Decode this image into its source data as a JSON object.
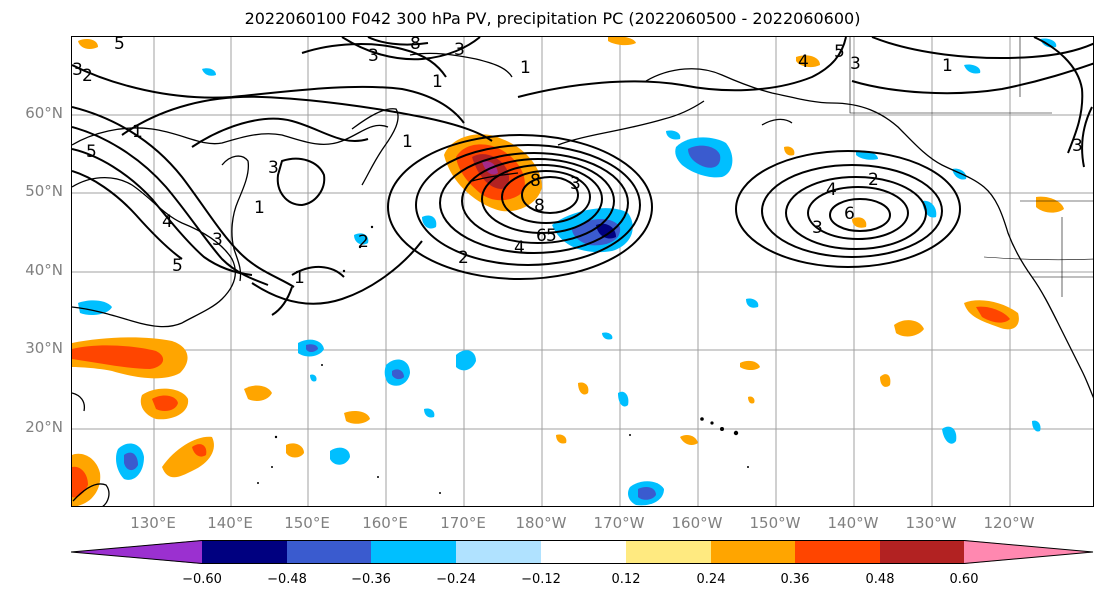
{
  "title": "2022060100 F042 300 hPa PV, precipitation PC (2022060500 - 2022060600)",
  "map": {
    "lat_labels": [
      "60°N",
      "50°N",
      "40°N",
      "30°N",
      "20°N"
    ],
    "lon_labels": [
      "130°E",
      "140°E",
      "150°E",
      "160°E",
      "170°E",
      "180°W",
      "170°W",
      "160°W",
      "150°W",
      "140°W",
      "130°W",
      "120°W"
    ],
    "contour_labels": [
      "1",
      "2",
      "3",
      "4",
      "5",
      "6",
      "8"
    ],
    "colors": {
      "land_outline": "#000000",
      "grid": "#a0a0a0",
      "contour": "#000000"
    }
  },
  "colorbar": {
    "tick_labels": [
      "−0.60",
      "−0.48",
      "−0.36",
      "−0.24",
      "−0.12",
      "0.12",
      "0.24",
      "0.36",
      "0.48",
      "0.60"
    ],
    "colors": [
      "#9b30d0",
      "#000080",
      "#3a5bcf",
      "#00bfff",
      "#b0e2ff",
      "#ffffff",
      "#ffea80",
      "#ffa500",
      "#ff4500",
      "#b22222",
      "#ff88b0"
    ]
  }
}
